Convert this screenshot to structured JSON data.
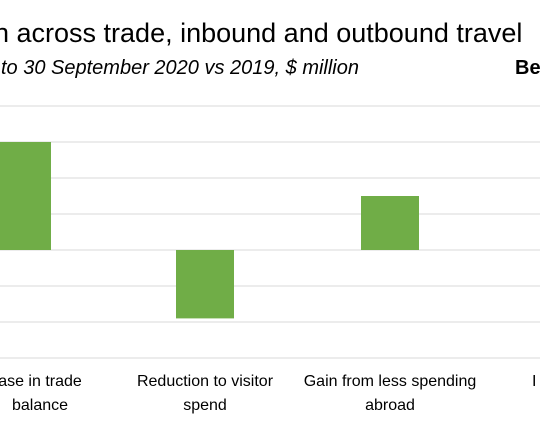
{
  "chart_data": {
    "type": "bar",
    "title": "n across trade, inbound and outbound travel",
    "subtitle": "to 30 September 2020 vs 2019, $ million",
    "corner_label": "Be",
    "categories": [
      [
        "ase in trade",
        "balance"
      ],
      [
        "Reduction to visitor",
        "spend"
      ],
      [
        "Gain from less spending",
        "abroad"
      ],
      [
        "I",
        ""
      ]
    ],
    "values": [
      300,
      -190,
      150,
      0
    ],
    "ylim": [
      -300,
      300
    ],
    "gridlines": true,
    "legend": "none",
    "colors": {
      "bar": "#70ad47",
      "grid": "#d9d9d9"
    }
  }
}
